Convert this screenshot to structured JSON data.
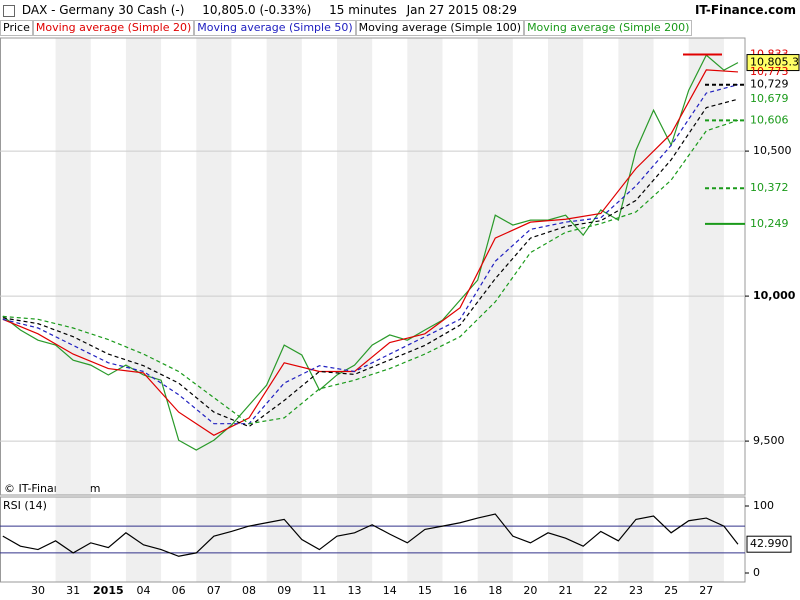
{
  "header": {
    "instrument": "DAX - Germany 30 Cash (-)",
    "quote": "10,805.0 (-0.33%)",
    "interval": "15 minutes",
    "timestamp": "Jan 27 2015 08:29",
    "brand": "IT-Finance.com"
  },
  "copyright": "© IT-Finance.com",
  "chart_data": [
    {
      "type": "line",
      "xlim": [
        -1.08,
        20.1
      ],
      "xticks": [
        {
          "value": 0,
          "label": "30"
        },
        {
          "value": 1,
          "label": "31"
        },
        {
          "value": 2,
          "label": "2015"
        },
        {
          "value": 3,
          "label": "04"
        },
        {
          "value": 4,
          "label": "06"
        },
        {
          "value": 5,
          "label": "07"
        },
        {
          "value": 6,
          "label": "08"
        },
        {
          "value": 7,
          "label": "09"
        },
        {
          "value": 8,
          "label": "11"
        },
        {
          "value": 9,
          "label": "13"
        },
        {
          "value": 10,
          "label": "14"
        },
        {
          "value": 11,
          "label": "15"
        },
        {
          "value": 12,
          "label": "16"
        },
        {
          "value": 13,
          "label": "18"
        },
        {
          "value": 14,
          "label": "20"
        },
        {
          "value": 15,
          "label": "21"
        },
        {
          "value": 16,
          "label": "22"
        },
        {
          "value": 17,
          "label": "23"
        },
        {
          "value": 18,
          "label": "25"
        },
        {
          "value": 19,
          "label": "27"
        }
      ],
      "ylim": [
        9321,
        10890
      ],
      "yticks": [
        {
          "value": 9500,
          "label": "9,500"
        },
        {
          "value": 10000,
          "label": "10,000"
        },
        {
          "value": 10500,
          "label": "10,500"
        }
      ],
      "grid": true,
      "series": [
        {
          "name": "Price",
          "color": "#2a9a2a",
          "dashed": false,
          "x": [
            -1,
            -0.5,
            0,
            0.5,
            1,
            1.5,
            2,
            2.5,
            3,
            3.5,
            4,
            4.5,
            5,
            5.5,
            6,
            6.5,
            7,
            7.5,
            8,
            8.5,
            9,
            9.5,
            10,
            10.5,
            11,
            11.5,
            12,
            12.5,
            13,
            13.5,
            14,
            14.5,
            15,
            15.5,
            16,
            16.5,
            17,
            17.5,
            18,
            18.5,
            19,
            19.5,
            19.9
          ],
          "values": [
            9931,
            9883,
            9848,
            9831,
            9779,
            9762,
            9728,
            9762,
            9728,
            9710,
            9503,
            9469,
            9503,
            9555,
            9624,
            9693,
            9831,
            9797,
            9676,
            9728,
            9762,
            9831,
            9866,
            9848,
            9883,
            9917,
            9986,
            10055,
            10279,
            10245,
            10262,
            10262,
            10279,
            10210,
            10297,
            10262,
            10503,
            10641,
            10521,
            10710,
            10831,
            10779,
            10805
          ]
        },
        {
          "name": "Moving average (Simple 20)",
          "color": "#e00000",
          "dashed": false,
          "x": [
            -1,
            0,
            1,
            2,
            3,
            4,
            5,
            6,
            7,
            8,
            9,
            10,
            11,
            12,
            13,
            14,
            15,
            16,
            17,
            18,
            19,
            19.9
          ],
          "values": [
            9920,
            9870,
            9800,
            9750,
            9735,
            9600,
            9520,
            9580,
            9770,
            9740,
            9740,
            9840,
            9870,
            9960,
            10200,
            10255,
            10265,
            10285,
            10440,
            10560,
            10780,
            10773
          ]
        },
        {
          "name": "Moving average (Simple 50)",
          "color": "#2020c0",
          "dashed": true,
          "x": [
            -1,
            0,
            1,
            2,
            3,
            4,
            5,
            6,
            7,
            8,
            9,
            10,
            11,
            12,
            13,
            14,
            15,
            16,
            17,
            18,
            19,
            19.9
          ],
          "values": [
            9920,
            9890,
            9830,
            9770,
            9740,
            9660,
            9560,
            9560,
            9700,
            9760,
            9740,
            9800,
            9860,
            9920,
            10120,
            10230,
            10255,
            10270,
            10380,
            10520,
            10700,
            10729
          ]
        },
        {
          "name": "Moving average (Simple 100)",
          "color": "#000000",
          "dashed": true,
          "x": [
            -1,
            0,
            1,
            2,
            3,
            4,
            5,
            6,
            7,
            8,
            9,
            10,
            11,
            12,
            13,
            14,
            15,
            16,
            17,
            18,
            19,
            19.9
          ],
          "values": [
            9925,
            9905,
            9860,
            9800,
            9760,
            9700,
            9600,
            9550,
            9640,
            9740,
            9730,
            9780,
            9830,
            9900,
            10060,
            10200,
            10240,
            10260,
            10330,
            10470,
            10650,
            10679
          ]
        },
        {
          "name": "Moving average (Simple 200)",
          "color": "#1a9a1a",
          "dashed": true,
          "x": [
            -1,
            0,
            1,
            2,
            3,
            4,
            5,
            6,
            7,
            8,
            9,
            10,
            11,
            12,
            13,
            14,
            15,
            16,
            17,
            18,
            19,
            19.9
          ],
          "values": [
            9930,
            9920,
            9890,
            9850,
            9800,
            9740,
            9650,
            9560,
            9580,
            9680,
            9710,
            9750,
            9800,
            9860,
            9980,
            10150,
            10220,
            10250,
            10290,
            10400,
            10570,
            10606
          ]
        }
      ],
      "levels": [
        {
          "value": 10833,
          "label": "10,833",
          "color": "#e00000",
          "style": "solid"
        },
        {
          "value": 10805.3,
          "label": "10,805.3",
          "color": "#000000",
          "style": "box"
        },
        {
          "value": 10773,
          "label": "10,773",
          "color": "#e00000",
          "style": "none"
        },
        {
          "value": 10729,
          "label": "10,729",
          "color": "#000000",
          "style": "dashed"
        },
        {
          "value": 10679,
          "label": "10,679",
          "color": "#1a9a1a",
          "style": "none"
        },
        {
          "value": 10606,
          "label": "10,606",
          "color": "#1a9a1a",
          "style": "dashed"
        },
        {
          "value": 10372,
          "label": "10,372",
          "color": "#1a9a1a",
          "style": "dashed"
        },
        {
          "value": 10249,
          "label": "10,249",
          "color": "#1a9a1a",
          "style": "solid"
        }
      ]
    },
    {
      "type": "line",
      "title": "RSI (14)",
      "xlim": [
        -1.08,
        20.1
      ],
      "ylim": [
        0,
        100
      ],
      "yticks": [
        0,
        100
      ],
      "reference_lines": [
        30,
        70
      ],
      "series": [
        {
          "color": "#000000",
          "x": [
            -1,
            -0.5,
            0,
            0.5,
            1,
            1.5,
            2,
            2.5,
            3,
            3.5,
            4,
            4.5,
            5,
            5.5,
            6,
            6.5,
            7,
            7.5,
            8,
            8.5,
            9,
            9.5,
            10,
            10.5,
            11,
            11.5,
            12,
            12.5,
            13,
            13.5,
            14,
            14.5,
            15,
            15.5,
            16,
            16.5,
            17,
            17.5,
            18,
            18.5,
            19,
            19.5,
            19.9
          ],
          "values": [
            55,
            40,
            35,
            48,
            30,
            45,
            38,
            60,
            42,
            35,
            25,
            30,
            55,
            62,
            70,
            75,
            80,
            50,
            35,
            55,
            60,
            72,
            58,
            45,
            65,
            70,
            75,
            82,
            88,
            55,
            45,
            60,
            52,
            40,
            62,
            48,
            80,
            85,
            60,
            78,
            82,
            70,
            42.99
          ]
        }
      ],
      "last_label": "42.990"
    }
  ]
}
